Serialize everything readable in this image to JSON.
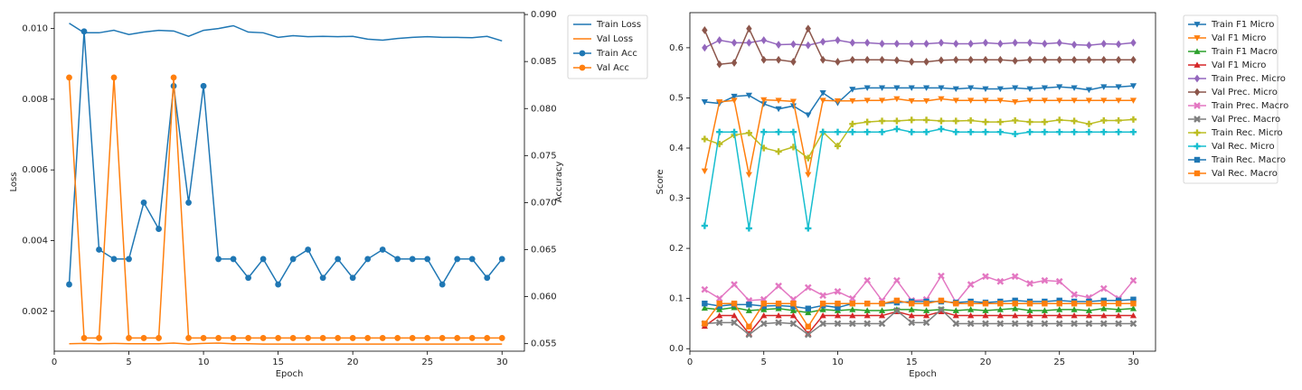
{
  "chart_data": [
    {
      "type": "line",
      "xlabel": "Epoch",
      "ylabel_left": "Loss",
      "ylabel_right": "Accuracy",
      "x": [
        1,
        2,
        3,
        4,
        5,
        6,
        7,
        8,
        9,
        10,
        11,
        12,
        13,
        14,
        15,
        16,
        17,
        18,
        19,
        20,
        21,
        22,
        23,
        24,
        25,
        26,
        27,
        28,
        29,
        30
      ],
      "xlim": [
        0,
        31.5
      ],
      "xticks": [
        0,
        5,
        10,
        15,
        20,
        25,
        30
      ],
      "ylim_left": [
        0.00087,
        0.01045
      ],
      "yticks_left": [
        0.002,
        0.004,
        0.006,
        0.008,
        0.01
      ],
      "ylim_right": [
        0.0542,
        0.0902
      ],
      "yticks_right": [
        0.055,
        0.06,
        0.065,
        0.07,
        0.075,
        0.08,
        0.085,
        0.09
      ],
      "legend_position": "outside-right-top",
      "grid": false,
      "series": [
        {
          "name": "Train Loss",
          "axis": "left",
          "color": "#1f77b4",
          "marker": "none",
          "values": [
            0.01015,
            0.00988,
            0.00988,
            0.00995,
            0.00983,
            0.0099,
            0.00995,
            0.00993,
            0.00978,
            0.00995,
            0.01,
            0.01008,
            0.0099,
            0.00988,
            0.00975,
            0.0098,
            0.00977,
            0.00978,
            0.00977,
            0.00978,
            0.0097,
            0.00967,
            0.00972,
            0.00975,
            0.00977,
            0.00975,
            0.00975,
            0.00974,
            0.00978,
            0.00965
          ]
        },
        {
          "name": "Val Loss",
          "axis": "left",
          "color": "#ff7f0e",
          "marker": "none",
          "values": [
            0.00108,
            0.00109,
            0.00108,
            0.00109,
            0.00108,
            0.00108,
            0.00108,
            0.0011,
            0.00107,
            0.00109,
            0.0011,
            0.00108,
            0.00108,
            0.00107,
            0.00107,
            0.00107,
            0.00107,
            0.00107,
            0.00107,
            0.00107,
            0.00107,
            0.00107,
            0.00107,
            0.00107,
            0.00107,
            0.00107,
            0.00107,
            0.00107,
            0.00107,
            0.00107
          ]
        },
        {
          "name": "Train Acc",
          "axis": "right",
          "color": "#1f77b4",
          "marker": "circle",
          "values": [
            0.0613,
            0.0882,
            0.065,
            0.064,
            0.064,
            0.07,
            0.0672,
            0.0824,
            0.07,
            0.0824,
            0.064,
            0.064,
            0.062,
            0.064,
            0.0613,
            0.064,
            0.065,
            0.062,
            0.064,
            0.062,
            0.064,
            0.065,
            0.064,
            0.064,
            0.064,
            0.0613,
            0.064,
            0.064,
            0.062,
            0.064
          ]
        },
        {
          "name": "Val Acc",
          "axis": "right",
          "color": "#ff7f0e",
          "marker": "circle",
          "values": [
            0.0833,
            0.0556,
            0.0556,
            0.0833,
            0.0556,
            0.0556,
            0.0556,
            0.0833,
            0.0556,
            0.0556,
            0.0556,
            0.0556,
            0.0556,
            0.0556,
            0.0556,
            0.0556,
            0.0556,
            0.0556,
            0.0556,
            0.0556,
            0.0556,
            0.0556,
            0.0556,
            0.0556,
            0.0556,
            0.0556,
            0.0556,
            0.0556,
            0.0556,
            0.0556
          ]
        }
      ]
    },
    {
      "type": "line",
      "xlabel": "Epoch",
      "ylabel": "Score",
      "x": [
        1,
        2,
        3,
        4,
        5,
        6,
        7,
        8,
        9,
        10,
        11,
        12,
        13,
        14,
        15,
        16,
        17,
        18,
        19,
        20,
        21,
        22,
        23,
        24,
        25,
        26,
        27,
        28,
        29,
        30
      ],
      "xlim": [
        0,
        31.5
      ],
      "xticks": [
        0,
        5,
        10,
        15,
        20,
        25,
        30
      ],
      "ylim": [
        -0.005,
        0.67
      ],
      "yticks": [
        0.0,
        0.1,
        0.2,
        0.3,
        0.4,
        0.5,
        0.6
      ],
      "legend_position": "outside-right-top",
      "grid": false,
      "series": [
        {
          "name": "Train F1 Micro",
          "color": "#1f77b4",
          "marker": "triangle-down",
          "values": [
            0.492,
            0.489,
            0.503,
            0.505,
            0.488,
            0.478,
            0.484,
            0.466,
            0.51,
            0.49,
            0.517,
            0.52,
            0.52,
            0.52,
            0.52,
            0.52,
            0.52,
            0.518,
            0.52,
            0.518,
            0.518,
            0.52,
            0.518,
            0.52,
            0.522,
            0.52,
            0.516,
            0.522,
            0.522,
            0.524
          ]
        },
        {
          "name": "Val F1 Micro",
          "color": "#ff7f0e",
          "marker": "triangle-down",
          "values": [
            0.354,
            0.492,
            0.495,
            0.347,
            0.496,
            0.495,
            0.493,
            0.347,
            0.495,
            0.494,
            0.494,
            0.495,
            0.495,
            0.498,
            0.494,
            0.494,
            0.498,
            0.495,
            0.495,
            0.495,
            0.495,
            0.492,
            0.495,
            0.495,
            0.495,
            0.495,
            0.495,
            0.495,
            0.495,
            0.495
          ]
        },
        {
          "name": "Train F1 Macro",
          "color": "#2ca02c",
          "marker": "triangle-up",
          "values": [
            0.081,
            0.078,
            0.082,
            0.076,
            0.078,
            0.08,
            0.076,
            0.072,
            0.078,
            0.076,
            0.078,
            0.076,
            0.076,
            0.078,
            0.078,
            0.076,
            0.078,
            0.076,
            0.078,
            0.076,
            0.078,
            0.08,
            0.076,
            0.076,
            0.078,
            0.078,
            0.076,
            0.08,
            0.078,
            0.08
          ]
        },
        {
          "name": "Val F1 Micro",
          "color": "#d62728",
          "marker": "triangle-up",
          "values": [
            0.045,
            0.066,
            0.066,
            0.03,
            0.066,
            0.066,
            0.066,
            0.03,
            0.066,
            0.066,
            0.066,
            0.066,
            0.066,
            0.074,
            0.066,
            0.066,
            0.074,
            0.066,
            0.066,
            0.066,
            0.066,
            0.066,
            0.066,
            0.066,
            0.066,
            0.066,
            0.066,
            0.066,
            0.066,
            0.066
          ]
        },
        {
          "name": "Train Prec. Micro",
          "color": "#9467bd",
          "marker": "diamond",
          "values": [
            0.6,
            0.615,
            0.61,
            0.61,
            0.615,
            0.606,
            0.607,
            0.605,
            0.612,
            0.615,
            0.61,
            0.61,
            0.608,
            0.608,
            0.608,
            0.608,
            0.61,
            0.608,
            0.608,
            0.61,
            0.608,
            0.61,
            0.61,
            0.608,
            0.61,
            0.606,
            0.605,
            0.608,
            0.607,
            0.61
          ]
        },
        {
          "name": "Val Prec. Micro",
          "color": "#8c564b",
          "marker": "diamond",
          "values": [
            0.635,
            0.567,
            0.57,
            0.638,
            0.576,
            0.576,
            0.572,
            0.638,
            0.576,
            0.572,
            0.576,
            0.576,
            0.576,
            0.575,
            0.572,
            0.572,
            0.575,
            0.576,
            0.576,
            0.576,
            0.576,
            0.574,
            0.576,
            0.576,
            0.576,
            0.576,
            0.576,
            0.576,
            0.576,
            0.576
          ]
        },
        {
          "name": "Train Prec. Macro",
          "color": "#e377c2",
          "marker": "x",
          "values": [
            0.118,
            0.1,
            0.128,
            0.096,
            0.098,
            0.125,
            0.098,
            0.122,
            0.106,
            0.114,
            0.1,
            0.136,
            0.096,
            0.136,
            0.096,
            0.098,
            0.145,
            0.092,
            0.128,
            0.144,
            0.134,
            0.144,
            0.13,
            0.136,
            0.134,
            0.108,
            0.102,
            0.12,
            0.1,
            0.136
          ]
        },
        {
          "name": "Val Prec. Macro",
          "color": "#7f7f7f",
          "marker": "x",
          "values": [
            0.05,
            0.052,
            0.052,
            0.028,
            0.05,
            0.052,
            0.05,
            0.028,
            0.05,
            0.05,
            0.05,
            0.05,
            0.05,
            0.076,
            0.052,
            0.052,
            0.078,
            0.05,
            0.05,
            0.05,
            0.05,
            0.05,
            0.05,
            0.05,
            0.05,
            0.05,
            0.05,
            0.05,
            0.05,
            0.05
          ]
        },
        {
          "name": "Train Rec. Micro",
          "color": "#bcbd22",
          "marker": "plus",
          "values": [
            0.418,
            0.408,
            0.426,
            0.43,
            0.4,
            0.393,
            0.402,
            0.38,
            0.432,
            0.404,
            0.448,
            0.452,
            0.454,
            0.454,
            0.456,
            0.456,
            0.454,
            0.454,
            0.455,
            0.452,
            0.452,
            0.455,
            0.452,
            0.452,
            0.456,
            0.454,
            0.448,
            0.455,
            0.455,
            0.457
          ]
        },
        {
          "name": "Val Rec. Micro",
          "color": "#17becf",
          "marker": "plus",
          "values": [
            0.245,
            0.432,
            0.432,
            0.24,
            0.432,
            0.432,
            0.432,
            0.24,
            0.432,
            0.432,
            0.432,
            0.432,
            0.432,
            0.438,
            0.432,
            0.432,
            0.438,
            0.432,
            0.432,
            0.432,
            0.432,
            0.428,
            0.432,
            0.432,
            0.432,
            0.432,
            0.432,
            0.432,
            0.432,
            0.432
          ]
        },
        {
          "name": "Train Rec. Macro",
          "color": "#1f77b4",
          "marker": "square",
          "values": [
            0.09,
            0.085,
            0.088,
            0.088,
            0.085,
            0.086,
            0.084,
            0.08,
            0.086,
            0.082,
            0.09,
            0.09,
            0.09,
            0.092,
            0.094,
            0.094,
            0.094,
            0.092,
            0.094,
            0.092,
            0.094,
            0.096,
            0.094,
            0.094,
            0.096,
            0.094,
            0.094,
            0.096,
            0.096,
            0.098
          ]
        },
        {
          "name": "Val Rec. Macro",
          "color": "#ff7f0e",
          "marker": "square",
          "values": [
            0.05,
            0.09,
            0.09,
            0.044,
            0.09,
            0.09,
            0.09,
            0.044,
            0.09,
            0.09,
            0.09,
            0.09,
            0.09,
            0.096,
            0.09,
            0.09,
            0.096,
            0.09,
            0.09,
            0.09,
            0.09,
            0.09,
            0.09,
            0.09,
            0.09,
            0.09,
            0.09,
            0.09,
            0.09,
            0.09
          ]
        }
      ]
    }
  ]
}
